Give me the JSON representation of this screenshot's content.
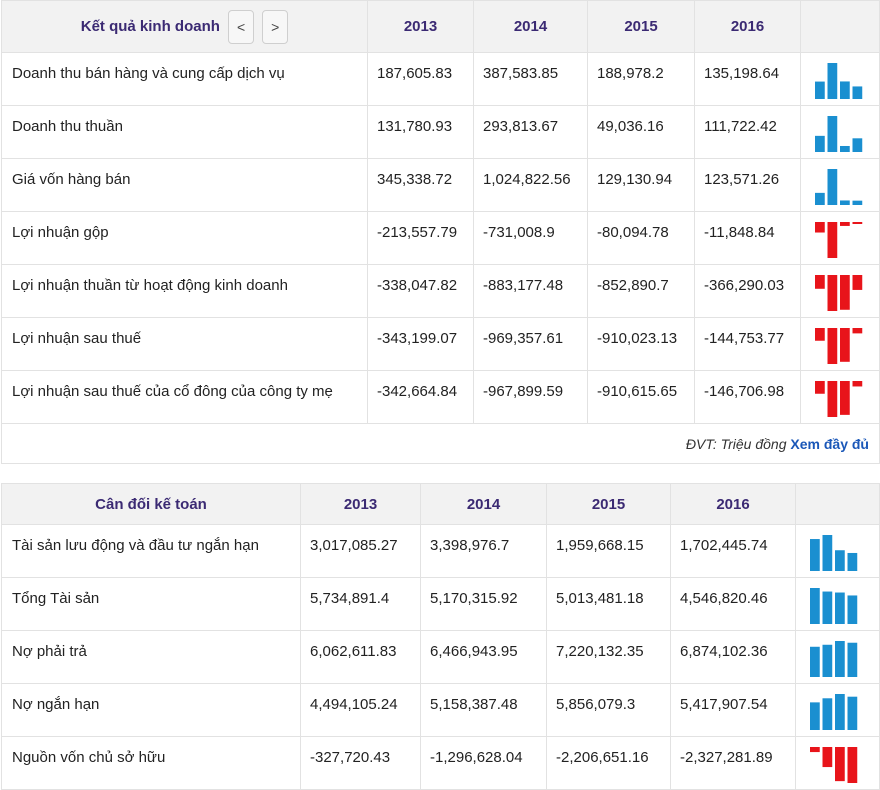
{
  "income": {
    "title": "Kết quả kinh doanh",
    "prev_label": "<",
    "next_label": ">",
    "years": [
      "2013",
      "2014",
      "2015",
      "2016"
    ],
    "rows": [
      {
        "label": "Doanh thu bán hàng và cung cấp dịch vụ",
        "display": [
          "187,605.83",
          "387,583.85",
          "188,978.2",
          "135,198.64"
        ],
        "values": [
          187605.83,
          387583.85,
          188978.2,
          135198.64
        ]
      },
      {
        "label": "Doanh thu thuần",
        "display": [
          "131,780.93",
          "293,813.67",
          "49,036.16",
          "111,722.42"
        ],
        "values": [
          131780.93,
          293813.67,
          49036.16,
          111722.42
        ]
      },
      {
        "label": "Giá vốn hàng bán",
        "display": [
          "345,338.72",
          "1,024,822.56",
          "129,130.94",
          "123,571.26"
        ],
        "values": [
          345338.72,
          1024822.56,
          129130.94,
          123571.26
        ]
      },
      {
        "label": "Lợi nhuận gộp",
        "display": [
          "-213,557.79",
          "-731,008.9",
          "-80,094.78",
          "-11,848.84"
        ],
        "values": [
          -213557.79,
          -731008.9,
          -80094.78,
          -11848.84
        ]
      },
      {
        "label": "Lợi nhuận thuần từ hoạt động kinh doanh",
        "display": [
          "-338,047.82",
          "-883,177.48",
          "-852,890.7",
          "-366,290.03"
        ],
        "values": [
          -338047.82,
          -883177.48,
          -852890.7,
          -366290.03
        ]
      },
      {
        "label": "Lợi nhuận sau thuế",
        "display": [
          "-343,199.07",
          "-969,357.61",
          "-910,023.13",
          "-144,753.77"
        ],
        "values": [
          -343199.07,
          -969357.61,
          -910023.13,
          -144753.77
        ]
      },
      {
        "label": "Lợi nhuận sau thuế của cổ đông của công ty mẹ",
        "display": [
          "-342,664.84",
          "-967,899.59",
          "-910,615.65",
          "-146,706.98"
        ],
        "values": [
          -342664.84,
          -967899.59,
          -910615.65,
          -146706.98
        ]
      }
    ],
    "unit_text": "ĐVT: Triệu đồng",
    "more_link": "Xem đầy đủ"
  },
  "balance": {
    "title": "Cân đối kế toán",
    "years": [
      "2013",
      "2014",
      "2015",
      "2016"
    ],
    "rows": [
      {
        "label": "Tài sản lưu động và đầu tư ngắn hạn",
        "display": [
          "3,017,085.27",
          "3,398,976.7",
          "1,959,668.15",
          "1,702,445.74"
        ],
        "values": [
          3017085.27,
          3398976.7,
          1959668.15,
          1702445.74
        ]
      },
      {
        "label": "Tổng Tài sản",
        "display": [
          "5,734,891.4",
          "5,170,315.92",
          "5,013,481.18",
          "4,546,820.46"
        ],
        "values": [
          5734891.4,
          5170315.92,
          5013481.18,
          4546820.46
        ]
      },
      {
        "label": "Nợ phải trả",
        "display": [
          "6,062,611.83",
          "6,466,943.95",
          "7,220,132.35",
          "6,874,102.36"
        ],
        "values": [
          6062611.83,
          6466943.95,
          7220132.35,
          6874102.36
        ]
      },
      {
        "label": "Nợ ngắn hạn",
        "display": [
          "4,494,105.24",
          "5,158,387.48",
          "5,856,079.3",
          "5,417,907.54"
        ],
        "values": [
          4494105.24,
          5158387.48,
          5856079.3,
          5417907.54
        ]
      },
      {
        "label": "Nguồn vốn chủ sở hữu",
        "display": [
          "-327,720.43",
          "-1,296,628.04",
          "-2,206,651.16",
          "-2,327,281.89"
        ],
        "values": [
          -327720.43,
          -1296628.04,
          -2206651.16,
          -2327281.89
        ]
      }
    ]
  },
  "colors": {
    "positive_bar": "#1a8fd0",
    "negative_bar": "#e8141a",
    "header_bg": "#f2f2f2",
    "header_text": "#3b2a73",
    "link": "#1a57b8"
  }
}
